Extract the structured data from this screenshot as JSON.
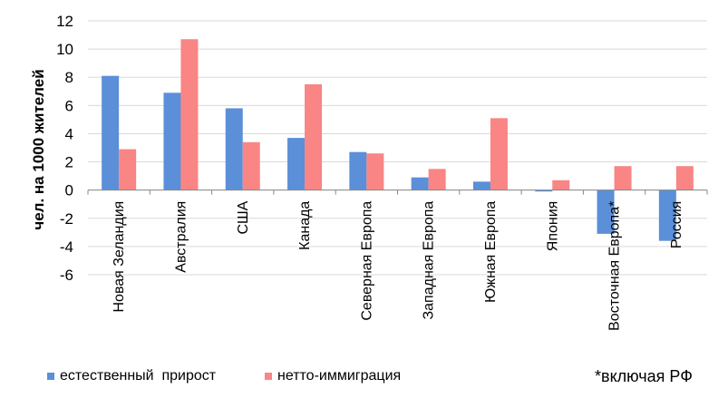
{
  "chart_data": {
    "type": "bar",
    "ylabel": "чел. на 1000 жителей",
    "ylim": [
      -6,
      12
    ],
    "yticks": [
      -6,
      -4,
      -2,
      0,
      2,
      4,
      6,
      8,
      10,
      12
    ],
    "categories": [
      "Новая Зеландия",
      "Австралия",
      "США",
      "Канада",
      "Северная Европа",
      "Западная Европа",
      "Южная Европа",
      "Япония",
      "Восточная Европа*",
      "Россия"
    ],
    "series": [
      {
        "name": "естественный  прирост",
        "color": "#5b8fd8",
        "values": [
          8.1,
          6.9,
          5.8,
          3.7,
          2.7,
          0.9,
          0.6,
          -0.1,
          -3.1,
          -3.6
        ]
      },
      {
        "name": "нетто-иммиграция",
        "color": "#f98585",
        "values": [
          2.9,
          10.7,
          3.4,
          7.5,
          2.6,
          1.5,
          5.1,
          0.7,
          1.7,
          1.7
        ]
      }
    ],
    "grid": true,
    "legend": "bottom-left"
  },
  "note": "*включая РФ"
}
